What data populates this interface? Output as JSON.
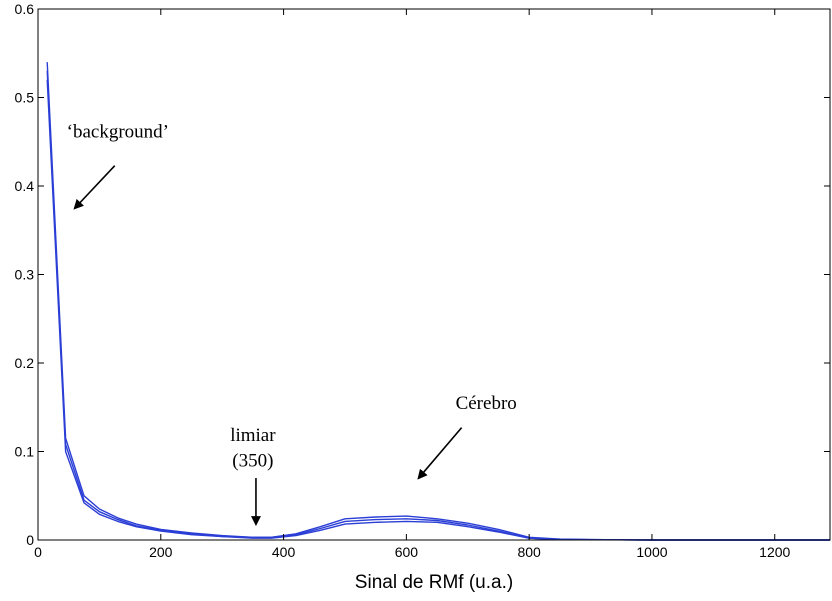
{
  "chart_data": {
    "type": "line",
    "title": "",
    "xlabel": "Sinal de RMf (u.a.)",
    "ylabel": "",
    "xlim": [
      0,
      1290
    ],
    "ylim": [
      0,
      0.6
    ],
    "xticks": [
      0,
      200,
      400,
      600,
      800,
      1000,
      1200
    ],
    "xtick_labels": [
      "0",
      "200",
      "400",
      "600",
      "800",
      "1000",
      "1200"
    ],
    "yticks": [
      0,
      0.1,
      0.2,
      0.3,
      0.4,
      0.5,
      0.6
    ],
    "ytick_labels": [
      "0",
      "0.1",
      "0.2",
      "0.3",
      "0.4",
      "0.5",
      "0.6"
    ],
    "grid": false,
    "line_color": "#2b3fd6",
    "series": [
      {
        "x": [
          15,
          45,
          75,
          100,
          130,
          160,
          200,
          250,
          300,
          350,
          380,
          420,
          460,
          500,
          550,
          600,
          650,
          700,
          750,
          800,
          850,
          900,
          1000,
          1100,
          1200,
          1290
        ],
        "values": [
          0.54,
          0.115,
          0.05,
          0.035,
          0.025,
          0.018,
          0.012,
          0.008,
          0.005,
          0.003,
          0.003,
          0.007,
          0.015,
          0.024,
          0.026,
          0.027,
          0.024,
          0.019,
          0.012,
          0.003,
          0.001,
          0.0005,
          0,
          0,
          0,
          0
        ]
      },
      {
        "x": [
          15,
          45,
          75,
          100,
          130,
          160,
          200,
          250,
          300,
          350,
          380,
          420,
          460,
          500,
          550,
          600,
          650,
          700,
          750,
          800,
          850,
          900,
          1000,
          1100,
          1200,
          1290
        ],
        "values": [
          0.53,
          0.108,
          0.045,
          0.032,
          0.023,
          0.016,
          0.011,
          0.007,
          0.004,
          0.003,
          0.003,
          0.006,
          0.013,
          0.021,
          0.023,
          0.024,
          0.022,
          0.017,
          0.01,
          0.002,
          0.0008,
          0.0004,
          0,
          0,
          0,
          0
        ]
      },
      {
        "x": [
          15,
          45,
          75,
          100,
          130,
          160,
          200,
          250,
          300,
          350,
          380,
          420,
          460,
          500,
          550,
          600,
          650,
          700,
          750,
          800,
          850,
          900,
          1000,
          1100,
          1200,
          1290
        ],
        "values": [
          0.52,
          0.1,
          0.042,
          0.029,
          0.021,
          0.015,
          0.01,
          0.006,
          0.004,
          0.002,
          0.002,
          0.005,
          0.011,
          0.018,
          0.02,
          0.021,
          0.02,
          0.015,
          0.009,
          0.002,
          0.0006,
          0.0003,
          0,
          0,
          0,
          0
        ]
      }
    ],
    "annotations": [
      {
        "text": "‘background’",
        "x": 130,
        "y": 0.455,
        "arrow_from": [
          125,
          0.423
        ],
        "arrow_to": [
          60,
          0.375
        ]
      },
      {
        "text": "limiar",
        "x": 350,
        "y": 0.112,
        "arrow_from": [
          355,
          0.07
        ],
        "arrow_to": [
          355,
          0.018
        ]
      },
      {
        "text": "(350)",
        "x": 350,
        "y": 0.083
      },
      {
        "text": "Cérebro",
        "x": 730,
        "y": 0.148,
        "arrow_from": [
          690,
          0.127
        ],
        "arrow_to": [
          620,
          0.07
        ]
      }
    ]
  }
}
